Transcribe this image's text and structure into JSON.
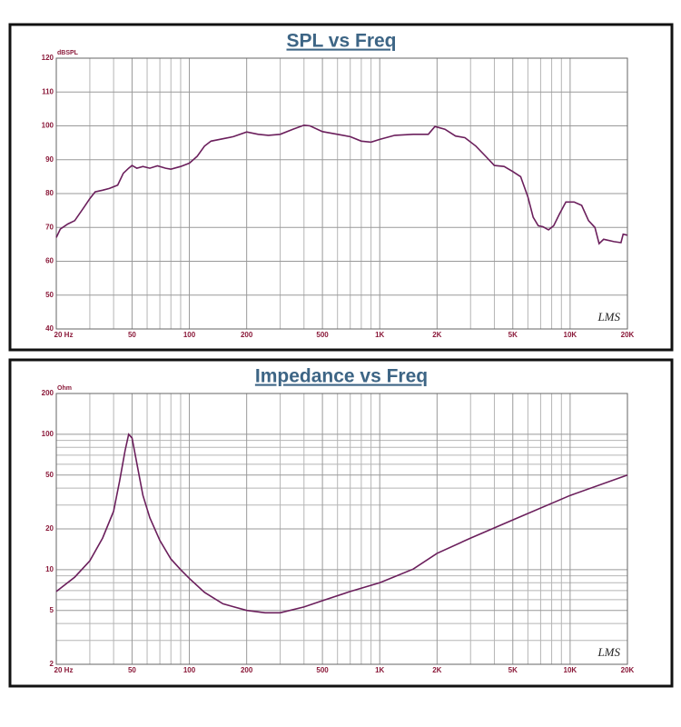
{
  "chart_data": [
    {
      "type": "line",
      "title": "SPL vs Freq",
      "ylabel": "dBSPL",
      "watermark": "LMS",
      "xscale": "log",
      "yscale": "linear",
      "grid": true,
      "color": "#6b1f5c",
      "xlim": [
        20,
        20000
      ],
      "ylim": [
        40,
        120
      ],
      "xticks": [
        {
          "value": 20,
          "label": "20  Hz"
        },
        50,
        100,
        200,
        500,
        {
          "value": 1000,
          "label": "1K"
        },
        {
          "value": 2000,
          "label": "2K"
        },
        {
          "value": 5000,
          "label": "5K"
        },
        {
          "value": 10000,
          "label": "10K"
        },
        {
          "value": 20000,
          "label": "20K"
        }
      ],
      "xgrid": [
        30,
        40,
        60,
        70,
        80,
        90,
        300,
        400,
        600,
        700,
        800,
        900,
        3000,
        4000,
        6000,
        7000,
        8000,
        9000
      ],
      "yticks": [
        40,
        50,
        60,
        70,
        80,
        90,
        100,
        110,
        120
      ],
      "x": [
        20,
        21,
        23,
        25,
        28,
        30,
        32,
        35,
        38,
        42,
        45,
        48,
        50,
        53,
        57,
        62,
        68,
        75,
        80,
        90,
        100,
        110,
        120,
        130,
        150,
        170,
        200,
        230,
        260,
        300,
        350,
        400,
        430,
        500,
        600,
        700,
        800,
        900,
        1000,
        1200,
        1500,
        1800,
        1950,
        2200,
        2500,
        2800,
        3200,
        3600,
        4000,
        4500,
        5000,
        5500,
        6000,
        6400,
        6800,
        7200,
        7700,
        8200,
        8800,
        9500,
        10500,
        11500,
        12500,
        13500,
        14200,
        15000,
        17000,
        18500,
        19000,
        20000
      ],
      "values": [
        67,
        69.5,
        71,
        72,
        76,
        78.5,
        80.5,
        81,
        81.5,
        82.5,
        86,
        87.5,
        88.3,
        87.5,
        88,
        87.5,
        88.2,
        87.5,
        87.2,
        88,
        89,
        91,
        94,
        95.5,
        96.2,
        96.8,
        98.2,
        97.5,
        97.2,
        97.5,
        99,
        100.2,
        100,
        98.3,
        97.5,
        96.8,
        95.5,
        95.2,
        96,
        97.2,
        97.5,
        97.5,
        99.8,
        99,
        97,
        96.5,
        94,
        91,
        88.3,
        88,
        86.5,
        85,
        79,
        73,
        70.5,
        70.2,
        69.3,
        70.5,
        74,
        77.5,
        77.5,
        76.5,
        72,
        70,
        65.2,
        66.5,
        65.8,
        65.5,
        68,
        67.7
      ]
    },
    {
      "type": "line",
      "title": "Impedance vs Freq",
      "ylabel": "Ohm",
      "watermark": "LMS",
      "xscale": "log",
      "yscale": "log",
      "grid": true,
      "color": "#6b1f5c",
      "xlim": [
        20,
        20000
      ],
      "ylim": [
        2,
        200
      ],
      "xticks": [
        {
          "value": 20,
          "label": "20  Hz"
        },
        50,
        100,
        200,
        500,
        {
          "value": 1000,
          "label": "1K"
        },
        {
          "value": 2000,
          "label": "2K"
        },
        {
          "value": 5000,
          "label": "5K"
        },
        {
          "value": 10000,
          "label": "10K"
        },
        {
          "value": 20000,
          "label": "20K"
        }
      ],
      "xgrid": [
        30,
        40,
        60,
        70,
        80,
        90,
        300,
        400,
        600,
        700,
        800,
        900,
        3000,
        4000,
        6000,
        7000,
        8000,
        9000
      ],
      "yticks": [
        2,
        5,
        10,
        20,
        50,
        100,
        200
      ],
      "ygrid": [
        3,
        4,
        6,
        7,
        8,
        9,
        30,
        40,
        60,
        70,
        80,
        90
      ],
      "x": [
        20,
        25,
        30,
        35,
        40,
        43,
        46,
        48,
        50,
        53,
        57,
        62,
        70,
        80,
        90,
        100,
        120,
        150,
        200,
        250,
        300,
        400,
        500,
        700,
        1000,
        1500,
        2000,
        3000,
        5000,
        10000,
        20000
      ],
      "values": [
        6.9,
        8.8,
        11.6,
        17.1,
        27,
        45,
        76,
        100,
        94,
        61,
        35.4,
        24.2,
        16.4,
        12,
        10,
        8.6,
        6.8,
        5.6,
        5.0,
        4.8,
        4.8,
        5.3,
        5.9,
        6.9,
        8.0,
        10.1,
        13.2,
        17.1,
        23.3,
        35.3,
        50
      ]
    }
  ]
}
